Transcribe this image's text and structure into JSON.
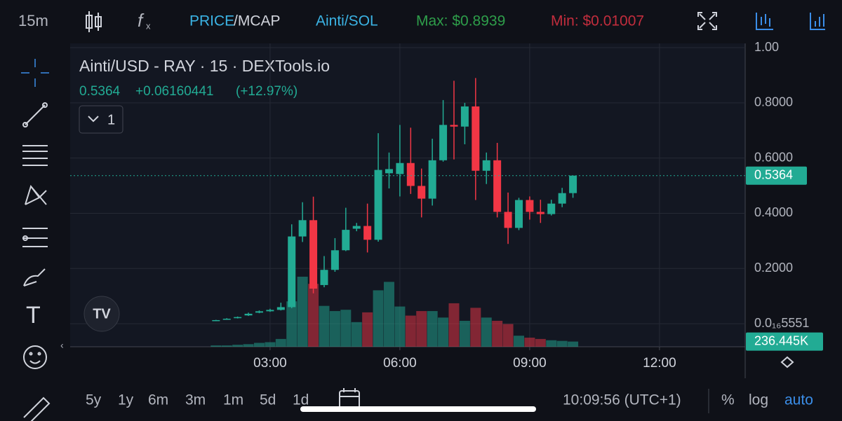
{
  "ui": {
    "interval": "15m",
    "price_toggle": "PRICE",
    "mcap_toggle": "/MCAP",
    "pair_sol": "Ainti/SOL",
    "max": "Max: $0.8939",
    "min": "Min: $0.01007",
    "series_badge": "1",
    "change": "+0.06160441",
    "change_pct": "(+12.97%)",
    "ranges": [
      "5y",
      "1y",
      "6m",
      "3m",
      "1m",
      "5d",
      "1d"
    ],
    "clock": "10:09:56 (UTC+1)",
    "percent": "%",
    "log": "log",
    "auto": "auto"
  },
  "chart_data": {
    "type": "candlestick",
    "title": "Ainti/USD - RAY · 15 · DEXTools.io",
    "up_color": "#22ab94",
    "down_color": "#f23645",
    "x": [
      1.75,
      2.0,
      2.25,
      2.5,
      2.75,
      3.0,
      3.25,
      3.5,
      3.75,
      4.0,
      4.25,
      4.5,
      4.75,
      5.0,
      5.25,
      5.5,
      5.75,
      6.0,
      6.25,
      6.5,
      6.75,
      7.0,
      7.25,
      7.5,
      7.75,
      8.0,
      8.25,
      8.5,
      8.75,
      9.0,
      9.25,
      9.5,
      9.75,
      10.0
    ],
    "open": [
      0.01,
      0.015,
      0.02,
      0.03,
      0.04,
      0.045,
      0.05,
      0.06,
      0.316,
      0.375,
      0.14,
      0.195,
      0.266,
      0.344,
      0.354,
      0.304,
      0.545,
      0.542,
      0.582,
      0.499,
      0.453,
      0.592,
      0.72,
      0.714,
      0.787,
      0.554,
      0.592,
      0.405,
      0.347,
      0.448,
      0.405,
      0.397,
      0.435,
      0.473
    ],
    "high": [
      0.014,
      0.02,
      0.026,
      0.04,
      0.048,
      0.054,
      0.076,
      0.36,
      0.44,
      0.46,
      0.245,
      0.31,
      0.42,
      0.365,
      0.435,
      0.69,
      0.62,
      0.72,
      0.71,
      0.562,
      0.67,
      0.81,
      0.88,
      0.8,
      0.89,
      0.62,
      0.655,
      0.475,
      0.456,
      0.461,
      0.449,
      0.449,
      0.492,
      0.537
    ],
    "low": [
      0.009,
      0.014,
      0.019,
      0.028,
      0.038,
      0.043,
      0.048,
      0.056,
      0.296,
      0.11,
      0.132,
      0.188,
      0.263,
      0.335,
      0.258,
      0.297,
      0.49,
      0.461,
      0.47,
      0.385,
      0.428,
      0.587,
      0.595,
      0.65,
      0.448,
      0.506,
      0.385,
      0.289,
      0.339,
      0.377,
      0.365,
      0.392,
      0.422,
      0.456
    ],
    "close": [
      0.013,
      0.018,
      0.024,
      0.036,
      0.045,
      0.05,
      0.06,
      0.316,
      0.375,
      0.127,
      0.195,
      0.266,
      0.34,
      0.354,
      0.304,
      0.557,
      0.56,
      0.582,
      0.499,
      0.453,
      0.592,
      0.72,
      0.714,
      0.787,
      0.554,
      0.592,
      0.405,
      0.347,
      0.448,
      0.405,
      0.397,
      0.435,
      0.473,
      0.5364
    ],
    "volume": [
      59,
      59,
      89,
      118,
      177,
      207,
      355,
      2069,
      3192,
      2867,
      1862,
      1626,
      1685,
      1123,
      1567,
      2572,
      2956,
      1833,
      1419,
      1626,
      1626,
      1330,
      1981,
      1182,
      1774,
      1330,
      1182,
      1035,
      503,
      414,
      355,
      296,
      266,
      236.445
    ],
    "last_price": 0.5364,
    "last_volume_label": "236.445K",
    "xlim": [
      -1.62,
      13.98
    ],
    "xticks": [
      {
        "value": 3,
        "label": "03:00"
      },
      {
        "value": 6,
        "label": "06:00"
      },
      {
        "value": 9,
        "label": "09:00"
      },
      {
        "value": 12,
        "label": "12:00"
      }
    ],
    "ylim": [
      -0.0835,
      1.0
    ],
    "yticks": [
      {
        "value": 0,
        "label": "0.0₁₆5551"
      },
      {
        "value": 0.2,
        "label": "0.2000"
      },
      {
        "value": 0.4,
        "label": "0.4000"
      },
      {
        "value": 0.6,
        "label": "0.6000"
      },
      {
        "value": 0.8,
        "label": "0.8000"
      },
      {
        "value": 1,
        "label": "1.00"
      }
    ],
    "grid": true
  }
}
